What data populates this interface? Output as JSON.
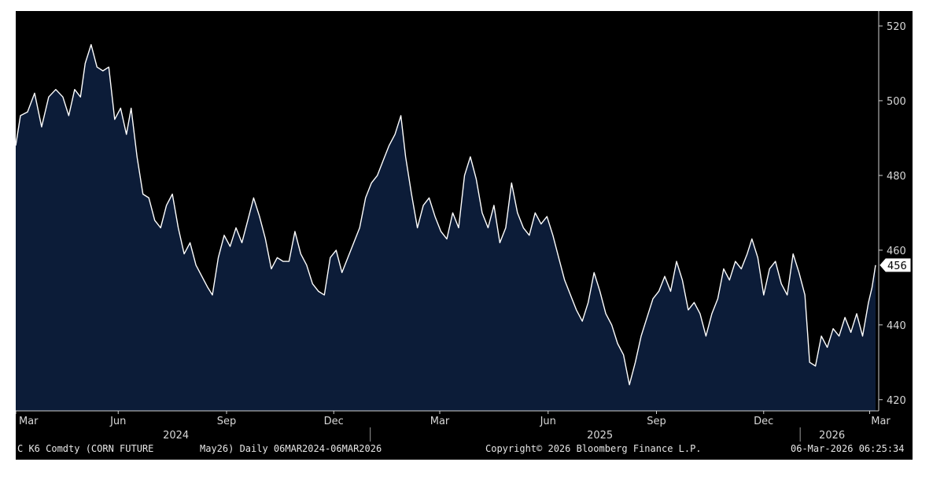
{
  "chart_data": {
    "type": "area",
    "ticker": "C K6 Comdty (CORN FUTURE",
    "contract": "May26) Daily 06MAR2024-06MAR2026",
    "copyright": "Copyright© 2026 Bloomberg Finance L.P.",
    "timestamp": "06-Mar-2026 06:25:34",
    "y_ticks": [
      "520",
      "500",
      "480",
      "460",
      "440",
      "420"
    ],
    "ylim": [
      417,
      524
    ],
    "last_value_label": "456",
    "x_ticks": [
      "Mar",
      "Jun",
      "Sep",
      "Dec",
      "Mar",
      "Jun",
      "Sep",
      "Dec",
      "Mar"
    ],
    "x_tick_dates": [
      "2024-03-06",
      "2024-06-01",
      "2024-09-01",
      "2024-12-01",
      "2025-03-01",
      "2025-06-01",
      "2025-09-01",
      "2025-12-01",
      "2026-03-01"
    ],
    "years": [
      {
        "label": "2024",
        "date": "2024-07-20"
      },
      {
        "label": "2025",
        "date": "2025-07-15"
      },
      {
        "label": "2026",
        "date": "2026-01-28"
      }
    ],
    "year_dividers": [
      "2025-01-01",
      "2026-01-01"
    ],
    "xlim": [
      "2024-03-06",
      "2026-03-06"
    ],
    "fill_color": "#0c1c38",
    "line_color": "#ffffff",
    "series": [
      {
        "values": [
          [
            "2024-03-06",
            488
          ],
          [
            "2024-03-10",
            496
          ],
          [
            "2024-03-16",
            497
          ],
          [
            "2024-03-22",
            502
          ],
          [
            "2024-03-28",
            493
          ],
          [
            "2024-04-03",
            501
          ],
          [
            "2024-04-09",
            503
          ],
          [
            "2024-04-15",
            501
          ],
          [
            "2024-04-20",
            496
          ],
          [
            "2024-04-25",
            503
          ],
          [
            "2024-04-30",
            501
          ],
          [
            "2024-05-04",
            510
          ],
          [
            "2024-05-09",
            515
          ],
          [
            "2024-05-14",
            509
          ],
          [
            "2024-05-19",
            508
          ],
          [
            "2024-05-24",
            509
          ],
          [
            "2024-05-29",
            495
          ],
          [
            "2024-06-03",
            498
          ],
          [
            "2024-06-08",
            491
          ],
          [
            "2024-06-12",
            498
          ],
          [
            "2024-06-17",
            485
          ],
          [
            "2024-06-22",
            475
          ],
          [
            "2024-06-27",
            474
          ],
          [
            "2024-07-02",
            468
          ],
          [
            "2024-07-07",
            466
          ],
          [
            "2024-07-12",
            472
          ],
          [
            "2024-07-17",
            475
          ],
          [
            "2024-07-22",
            466
          ],
          [
            "2024-07-27",
            459
          ],
          [
            "2024-08-01",
            462
          ],
          [
            "2024-08-06",
            456
          ],
          [
            "2024-08-11",
            453
          ],
          [
            "2024-08-16",
            450
          ],
          [
            "2024-08-20",
            448
          ],
          [
            "2024-08-25",
            458
          ],
          [
            "2024-08-30",
            464
          ],
          [
            "2024-09-04",
            461
          ],
          [
            "2024-09-09",
            466
          ],
          [
            "2024-09-14",
            462
          ],
          [
            "2024-09-19",
            468
          ],
          [
            "2024-09-24",
            474
          ],
          [
            "2024-09-29",
            469
          ],
          [
            "2024-10-04",
            463
          ],
          [
            "2024-10-09",
            455
          ],
          [
            "2024-10-14",
            458
          ],
          [
            "2024-10-19",
            457
          ],
          [
            "2024-10-24",
            457
          ],
          [
            "2024-10-29",
            465
          ],
          [
            "2024-11-03",
            459
          ],
          [
            "2024-11-08",
            456
          ],
          [
            "2024-11-13",
            451
          ],
          [
            "2024-11-18",
            449
          ],
          [
            "2024-11-23",
            448
          ],
          [
            "2024-11-28",
            458
          ],
          [
            "2024-12-03",
            460
          ],
          [
            "2024-12-08",
            454
          ],
          [
            "2024-12-13",
            458
          ],
          [
            "2024-12-18",
            462
          ],
          [
            "2024-12-23",
            466
          ],
          [
            "2024-12-28",
            474
          ],
          [
            "2025-01-02",
            478
          ],
          [
            "2025-01-07",
            480
          ],
          [
            "2025-01-12",
            484
          ],
          [
            "2025-01-17",
            488
          ],
          [
            "2025-01-22",
            491
          ],
          [
            "2025-01-27",
            496
          ],
          [
            "2025-01-31",
            485
          ],
          [
            "2025-02-05",
            475
          ],
          [
            "2025-02-10",
            466
          ],
          [
            "2025-02-15",
            472
          ],
          [
            "2025-02-20",
            474
          ],
          [
            "2025-02-25",
            469
          ],
          [
            "2025-03-02",
            465
          ],
          [
            "2025-03-07",
            463
          ],
          [
            "2025-03-12",
            470
          ],
          [
            "2025-03-17",
            466
          ],
          [
            "2025-03-22",
            480
          ],
          [
            "2025-03-27",
            485
          ],
          [
            "2025-04-01",
            479
          ],
          [
            "2025-04-06",
            470
          ],
          [
            "2025-04-11",
            466
          ],
          [
            "2025-04-16",
            472
          ],
          [
            "2025-04-21",
            462
          ],
          [
            "2025-04-26",
            466
          ],
          [
            "2025-05-01",
            478
          ],
          [
            "2025-05-06",
            470
          ],
          [
            "2025-05-11",
            466
          ],
          [
            "2025-05-16",
            464
          ],
          [
            "2025-05-21",
            470
          ],
          [
            "2025-05-26",
            467
          ],
          [
            "2025-05-31",
            469
          ],
          [
            "2025-06-05",
            464
          ],
          [
            "2025-06-10",
            458
          ],
          [
            "2025-06-15",
            452
          ],
          [
            "2025-06-20",
            448
          ],
          [
            "2025-06-25",
            444
          ],
          [
            "2025-06-30",
            441
          ],
          [
            "2025-07-05",
            446
          ],
          [
            "2025-07-10",
            454
          ],
          [
            "2025-07-15",
            449
          ],
          [
            "2025-07-20",
            443
          ],
          [
            "2025-07-25",
            440
          ],
          [
            "2025-07-30",
            435
          ],
          [
            "2025-08-04",
            432
          ],
          [
            "2025-08-09",
            424
          ],
          [
            "2025-08-14",
            430
          ],
          [
            "2025-08-19",
            437
          ],
          [
            "2025-08-24",
            442
          ],
          [
            "2025-08-29",
            447
          ],
          [
            "2025-09-03",
            449
          ],
          [
            "2025-09-08",
            453
          ],
          [
            "2025-09-13",
            449
          ],
          [
            "2025-09-18",
            457
          ],
          [
            "2025-09-23",
            452
          ],
          [
            "2025-09-28",
            444
          ],
          [
            "2025-10-03",
            446
          ],
          [
            "2025-10-08",
            443
          ],
          [
            "2025-10-13",
            437
          ],
          [
            "2025-10-18",
            443
          ],
          [
            "2025-10-23",
            447
          ],
          [
            "2025-10-28",
            455
          ],
          [
            "2025-11-02",
            452
          ],
          [
            "2025-11-07",
            457
          ],
          [
            "2025-11-12",
            455
          ],
          [
            "2025-11-17",
            459
          ],
          [
            "2025-11-21",
            463
          ],
          [
            "2025-11-26",
            458
          ],
          [
            "2025-12-01",
            448
          ],
          [
            "2025-12-06",
            455
          ],
          [
            "2025-12-11",
            457
          ],
          [
            "2025-12-16",
            451
          ],
          [
            "2025-12-21",
            448
          ],
          [
            "2025-12-26",
            459
          ],
          [
            "2025-12-31",
            454
          ],
          [
            "2026-01-05",
            448
          ],
          [
            "2026-01-09",
            430
          ],
          [
            "2026-01-14",
            429
          ],
          [
            "2026-01-19",
            437
          ],
          [
            "2026-01-24",
            434
          ],
          [
            "2026-01-29",
            439
          ],
          [
            "2026-02-03",
            437
          ],
          [
            "2026-02-08",
            442
          ],
          [
            "2026-02-13",
            438
          ],
          [
            "2026-02-18",
            443
          ],
          [
            "2026-02-23",
            437
          ],
          [
            "2026-02-28",
            446
          ],
          [
            "2026-03-03",
            450
          ],
          [
            "2026-03-06",
            456
          ]
        ]
      }
    ]
  }
}
